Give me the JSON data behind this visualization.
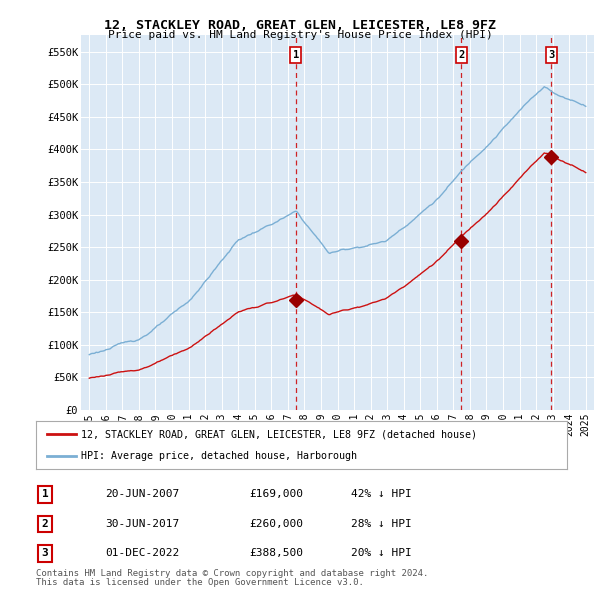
{
  "title": "12, STACKLEY ROAD, GREAT GLEN, LEICESTER, LE8 9FZ",
  "subtitle": "Price paid vs. HM Land Registry's House Price Index (HPI)",
  "ylim": [
    0,
    575000
  ],
  "yticks": [
    0,
    50000,
    100000,
    150000,
    200000,
    250000,
    300000,
    350000,
    400000,
    450000,
    500000,
    550000
  ],
  "ytick_labels": [
    "£0",
    "£50K",
    "£100K",
    "£150K",
    "£200K",
    "£250K",
    "£300K",
    "£350K",
    "£400K",
    "£450K",
    "£500K",
    "£550K"
  ],
  "hpi_color": "#7bafd4",
  "price_color": "#cc1111",
  "marker_color": "#990000",
  "dashed_color": "#cc0000",
  "background_color": "#dce9f5",
  "legend_label1": "12, STACKLEY ROAD, GREAT GLEN, LEICESTER, LE8 9FZ (detached house)",
  "legend_label2": "HPI: Average price, detached house, Harborough",
  "transactions": [
    {
      "label": "1",
      "date_idx": 2007.47,
      "price": 169000,
      "pct": "42% ↓ HPI",
      "date_str": "20-JUN-2007"
    },
    {
      "label": "2",
      "date_idx": 2017.49,
      "price": 260000,
      "pct": "28% ↓ HPI",
      "date_str": "30-JUN-2017"
    },
    {
      "label": "3",
      "date_idx": 2022.92,
      "price": 388500,
      "pct": "20% ↓ HPI",
      "date_str": "01-DEC-2022"
    }
  ],
  "footer1": "Contains HM Land Registry data © Crown copyright and database right 2024.",
  "footer2": "This data is licensed under the Open Government Licence v3.0.",
  "xlim_start": 1994.5,
  "xlim_end": 2025.5
}
